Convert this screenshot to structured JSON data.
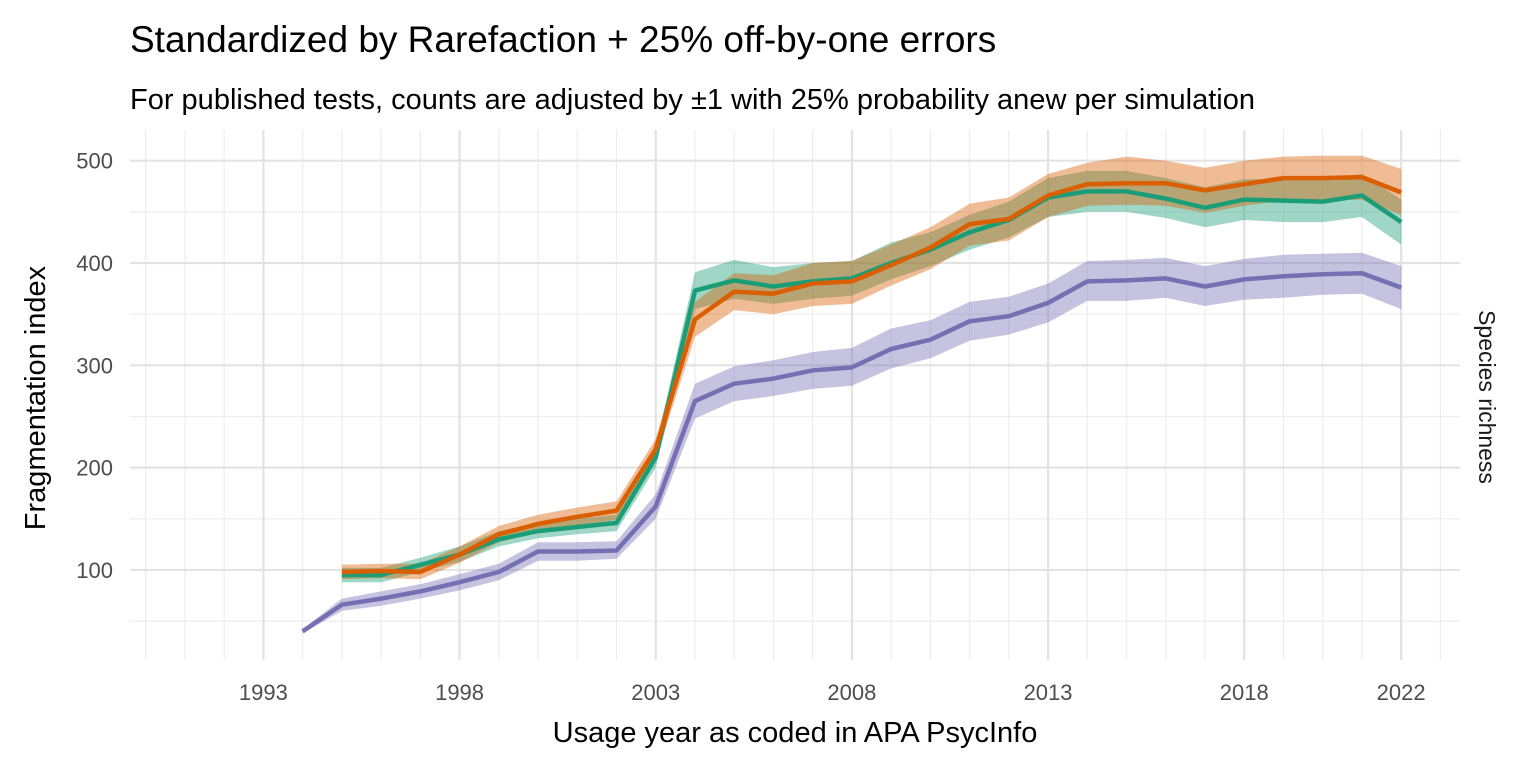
{
  "chart_data": {
    "type": "line",
    "title": "Standardized by Rarefaction + 25% off-by-one errors",
    "subtitle": "For published tests, counts are adjusted by ±1 with 25% probability anew per simulation",
    "xlabel": "Usage year as coded in APA PsycInfo",
    "ylabel": "Fragmentation index",
    "facet_label": "Species richness",
    "xlim": [
      1989.6,
      2023.5
    ],
    "ylim": [
      12,
      530
    ],
    "x_ticks": [
      1993,
      1998,
      2003,
      2008,
      2013,
      2018,
      2022
    ],
    "x_tick_labels": [
      "1993",
      "1998",
      "2003",
      "2008",
      "2013",
      "2018",
      "2022"
    ],
    "y_ticks": [
      100,
      200,
      300,
      400,
      500
    ],
    "y_tick_labels": [
      "100",
      "200",
      "300",
      "400",
      "500"
    ],
    "grid": true,
    "legend": "none",
    "series": [
      {
        "color": "#1b9e77",
        "x": [
          1995,
          1996,
          1997,
          1998,
          1999,
          2000,
          2001,
          2002,
          2003,
          2004,
          2005,
          2006,
          2007,
          2008,
          2009,
          2010,
          2011,
          2012,
          2013,
          2014,
          2015,
          2016,
          2017,
          2018,
          2019,
          2020,
          2021,
          2022
        ],
        "y": [
          95,
          95,
          105,
          115,
          130,
          138,
          142,
          146,
          210,
          373,
          383,
          377,
          382,
          385,
          400,
          413,
          430,
          442,
          464,
          470,
          470,
          463,
          454,
          462,
          461,
          460,
          466,
          440
        ],
        "lower": [
          88,
          88,
          98,
          108,
          123,
          131,
          135,
          138,
          200,
          355,
          365,
          360,
          365,
          368,
          384,
          397,
          413,
          425,
          445,
          450,
          450,
          444,
          435,
          442,
          440,
          440,
          445,
          418
        ],
        "upper": [
          102,
          102,
          112,
          123,
          138,
          146,
          150,
          154,
          220,
          391,
          403,
          396,
          400,
          402,
          420,
          430,
          447,
          460,
          483,
          490,
          490,
          483,
          474,
          482,
          482,
          481,
          487,
          462
        ]
      },
      {
        "color": "#d95f02",
        "x": [
          1995,
          1996,
          1997,
          1998,
          1999,
          2000,
          2001,
          2002,
          2003,
          2004,
          2005,
          2006,
          2007,
          2008,
          2009,
          2010,
          2011,
          2012,
          2013,
          2014,
          2015,
          2016,
          2017,
          2018,
          2019,
          2020,
          2021,
          2022
        ],
        "y": [
          98,
          99,
          98,
          115,
          135,
          145,
          152,
          158,
          218,
          345,
          372,
          370,
          380,
          382,
          398,
          415,
          438,
          443,
          466,
          477,
          478,
          478,
          471,
          477,
          483,
          483,
          484,
          469
        ],
        "lower": [
          91,
          92,
          91,
          107,
          127,
          137,
          143,
          149,
          208,
          328,
          354,
          350,
          358,
          360,
          378,
          394,
          417,
          422,
          445,
          456,
          457,
          456,
          449,
          456,
          461,
          461,
          462,
          447
        ],
        "upper": [
          105,
          106,
          106,
          123,
          143,
          154,
          161,
          167,
          228,
          362,
          390,
          388,
          400,
          402,
          418,
          435,
          458,
          464,
          487,
          498,
          504,
          500,
          493,
          500,
          504,
          505,
          505,
          492
        ]
      },
      {
        "color": "#7570b3",
        "x": [
          1994,
          1995,
          1996,
          1997,
          1998,
          1999,
          2000,
          2001,
          2002,
          2003,
          2004,
          2005,
          2006,
          2007,
          2008,
          2009,
          2010,
          2011,
          2012,
          2013,
          2014,
          2015,
          2016,
          2017,
          2018,
          2019,
          2020,
          2021,
          2022
        ],
        "y": [
          40,
          66,
          72,
          79,
          88,
          98,
          118,
          118,
          119,
          162,
          265,
          282,
          287,
          295,
          298,
          316,
          325,
          343,
          348,
          361,
          382,
          383,
          385,
          377,
          384,
          387,
          389,
          390,
          376
        ],
        "lower": [
          38,
          60,
          65,
          72,
          80,
          90,
          109,
          109,
          111,
          150,
          248,
          265,
          270,
          277,
          280,
          297,
          307,
          324,
          330,
          342,
          363,
          363,
          366,
          358,
          364,
          366,
          369,
          370,
          355
        ],
        "upper": [
          42,
          72,
          79,
          86,
          96,
          106,
          127,
          127,
          128,
          174,
          282,
          299,
          305,
          313,
          317,
          336,
          344,
          362,
          367,
          380,
          402,
          403,
          405,
          397,
          404,
          408,
          409,
          410,
          397
        ]
      }
    ]
  }
}
